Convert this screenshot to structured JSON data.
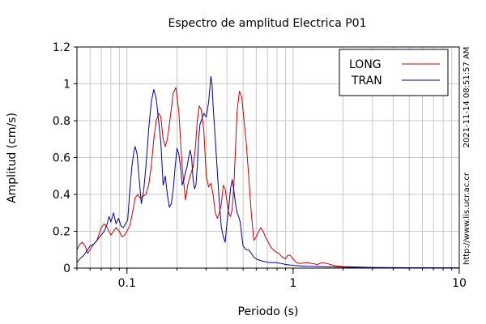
{
  "chart_data": {
    "type": "line",
    "title": "Espectro de amplitud Electrica P01",
    "xlabel": "Periodo (s)",
    "ylabel": "Amplitud (cm/s)",
    "x_scale": "log",
    "xlim": [
      0.05,
      10
    ],
    "ylim": [
      0,
      1.2
    ],
    "x_ticks": [
      0.1,
      1,
      10
    ],
    "x_tick_labels": [
      "0.1",
      "1",
      "10"
    ],
    "y_ticks": [
      0,
      0.2,
      0.4,
      0.6,
      0.8,
      1,
      1.2
    ],
    "y_tick_labels": [
      "0",
      "0.2",
      "0.4",
      "0.6",
      "0.8",
      "1",
      "1.2"
    ],
    "grid": true,
    "legend_position": "top-right",
    "side_annotations": [
      "2021-11-14 08:51:57 AM",
      "http://www.lis.ucr.ac.cr"
    ],
    "series": [
      {
        "name": "LONG",
        "color": "#cc0000",
        "points": [
          [
            0.05,
            0.1
          ],
          [
            0.052,
            0.13
          ],
          [
            0.054,
            0.14
          ],
          [
            0.056,
            0.12
          ],
          [
            0.058,
            0.08
          ],
          [
            0.06,
            0.1
          ],
          [
            0.063,
            0.13
          ],
          [
            0.066,
            0.15
          ],
          [
            0.07,
            0.22
          ],
          [
            0.073,
            0.24
          ],
          [
            0.076,
            0.22
          ],
          [
            0.08,
            0.18
          ],
          [
            0.083,
            0.2
          ],
          [
            0.086,
            0.22
          ],
          [
            0.09,
            0.2
          ],
          [
            0.093,
            0.17
          ],
          [
            0.097,
            0.18
          ],
          [
            0.1,
            0.2
          ],
          [
            0.104,
            0.23
          ],
          [
            0.108,
            0.3
          ],
          [
            0.112,
            0.38
          ],
          [
            0.116,
            0.4
          ],
          [
            0.12,
            0.38
          ],
          [
            0.125,
            0.39
          ],
          [
            0.13,
            0.4
          ],
          [
            0.135,
            0.45
          ],
          [
            0.14,
            0.55
          ],
          [
            0.145,
            0.7
          ],
          [
            0.15,
            0.8
          ],
          [
            0.155,
            0.84
          ],
          [
            0.16,
            0.82
          ],
          [
            0.165,
            0.7
          ],
          [
            0.17,
            0.66
          ],
          [
            0.175,
            0.7
          ],
          [
            0.18,
            0.78
          ],
          [
            0.19,
            0.95
          ],
          [
            0.197,
            0.98
          ],
          [
            0.205,
            0.85
          ],
          [
            0.215,
            0.55
          ],
          [
            0.225,
            0.37
          ],
          [
            0.232,
            0.45
          ],
          [
            0.24,
            0.5
          ],
          [
            0.25,
            0.55
          ],
          [
            0.258,
            0.65
          ],
          [
            0.265,
            0.8
          ],
          [
            0.272,
            0.88
          ],
          [
            0.28,
            0.86
          ],
          [
            0.29,
            0.75
          ],
          [
            0.3,
            0.5
          ],
          [
            0.31,
            0.44
          ],
          [
            0.32,
            0.46
          ],
          [
            0.33,
            0.4
          ],
          [
            0.34,
            0.3
          ],
          [
            0.35,
            0.27
          ],
          [
            0.36,
            0.3
          ],
          [
            0.37,
            0.35
          ],
          [
            0.38,
            0.45
          ],
          [
            0.39,
            0.43
          ],
          [
            0.4,
            0.36
          ],
          [
            0.41,
            0.3
          ],
          [
            0.42,
            0.28
          ],
          [
            0.43,
            0.32
          ],
          [
            0.44,
            0.45
          ],
          [
            0.45,
            0.65
          ],
          [
            0.46,
            0.85
          ],
          [
            0.475,
            0.96
          ],
          [
            0.49,
            0.93
          ],
          [
            0.5,
            0.85
          ],
          [
            0.52,
            0.7
          ],
          [
            0.54,
            0.5
          ],
          [
            0.56,
            0.3
          ],
          [
            0.58,
            0.15
          ],
          [
            0.6,
            0.17
          ],
          [
            0.62,
            0.2
          ],
          [
            0.64,
            0.22
          ],
          [
            0.66,
            0.2
          ],
          [
            0.68,
            0.17
          ],
          [
            0.7,
            0.15
          ],
          [
            0.74,
            0.11
          ],
          [
            0.78,
            0.09
          ],
          [
            0.82,
            0.08
          ],
          [
            0.86,
            0.06
          ],
          [
            0.9,
            0.05
          ],
          [
            0.93,
            0.07
          ],
          [
            0.96,
            0.07
          ],
          [
            1.0,
            0.05
          ],
          [
            1.05,
            0.03
          ],
          [
            1.1,
            0.025
          ],
          [
            1.2,
            0.03
          ],
          [
            1.3,
            0.025
          ],
          [
            1.4,
            0.02
          ],
          [
            1.5,
            0.03
          ],
          [
            1.6,
            0.025
          ],
          [
            1.7,
            0.018
          ],
          [
            1.8,
            0.012
          ],
          [
            2.0,
            0.008
          ],
          [
            2.5,
            0.006
          ],
          [
            3.0,
            0.004
          ],
          [
            4.0,
            0.003
          ],
          [
            5.0,
            0.002
          ],
          [
            7.0,
            0.001
          ],
          [
            10.0,
            0.001
          ]
        ]
      },
      {
        "name": "TRAN",
        "color": "#000099",
        "points": [
          [
            0.05,
            0.03
          ],
          [
            0.052,
            0.05
          ],
          [
            0.055,
            0.07
          ],
          [
            0.058,
            0.1
          ],
          [
            0.06,
            0.12
          ],
          [
            0.063,
            0.13
          ],
          [
            0.066,
            0.15
          ],
          [
            0.07,
            0.18
          ],
          [
            0.073,
            0.2
          ],
          [
            0.076,
            0.24
          ],
          [
            0.078,
            0.28
          ],
          [
            0.08,
            0.25
          ],
          [
            0.083,
            0.3
          ],
          [
            0.086,
            0.24
          ],
          [
            0.089,
            0.27
          ],
          [
            0.092,
            0.23
          ],
          [
            0.095,
            0.22
          ],
          [
            0.098,
            0.24
          ],
          [
            0.101,
            0.26
          ],
          [
            0.104,
            0.42
          ],
          [
            0.107,
            0.55
          ],
          [
            0.11,
            0.63
          ],
          [
            0.112,
            0.66
          ],
          [
            0.115,
            0.62
          ],
          [
            0.118,
            0.5
          ],
          [
            0.122,
            0.35
          ],
          [
            0.126,
            0.42
          ],
          [
            0.13,
            0.55
          ],
          [
            0.135,
            0.75
          ],
          [
            0.14,
            0.9
          ],
          [
            0.145,
            0.97
          ],
          [
            0.15,
            0.92
          ],
          [
            0.155,
            0.8
          ],
          [
            0.16,
            0.68
          ],
          [
            0.165,
            0.45
          ],
          [
            0.17,
            0.5
          ],
          [
            0.175,
            0.4
          ],
          [
            0.18,
            0.33
          ],
          [
            0.185,
            0.35
          ],
          [
            0.19,
            0.43
          ],
          [
            0.195,
            0.55
          ],
          [
            0.2,
            0.65
          ],
          [
            0.205,
            0.62
          ],
          [
            0.21,
            0.55
          ],
          [
            0.215,
            0.45
          ],
          [
            0.22,
            0.48
          ],
          [
            0.225,
            0.52
          ],
          [
            0.23,
            0.55
          ],
          [
            0.235,
            0.6
          ],
          [
            0.24,
            0.64
          ],
          [
            0.245,
            0.6
          ],
          [
            0.25,
            0.48
          ],
          [
            0.255,
            0.43
          ],
          [
            0.26,
            0.45
          ],
          [
            0.265,
            0.55
          ],
          [
            0.27,
            0.7
          ],
          [
            0.275,
            0.78
          ],
          [
            0.28,
            0.8
          ],
          [
            0.29,
            0.84
          ],
          [
            0.3,
            0.82
          ],
          [
            0.31,
            0.9
          ],
          [
            0.32,
            1.04
          ],
          [
            0.325,
            1.0
          ],
          [
            0.33,
            0.88
          ],
          [
            0.34,
            0.7
          ],
          [
            0.35,
            0.52
          ],
          [
            0.36,
            0.35
          ],
          [
            0.37,
            0.22
          ],
          [
            0.38,
            0.17
          ],
          [
            0.39,
            0.14
          ],
          [
            0.4,
            0.25
          ],
          [
            0.41,
            0.33
          ],
          [
            0.42,
            0.43
          ],
          [
            0.43,
            0.48
          ],
          [
            0.44,
            0.42
          ],
          [
            0.45,
            0.35
          ],
          [
            0.46,
            0.3
          ],
          [
            0.47,
            0.28
          ],
          [
            0.48,
            0.25
          ],
          [
            0.49,
            0.18
          ],
          [
            0.5,
            0.12
          ],
          [
            0.52,
            0.1
          ],
          [
            0.54,
            0.1
          ],
          [
            0.56,
            0.08
          ],
          [
            0.58,
            0.06
          ],
          [
            0.6,
            0.05
          ],
          [
            0.64,
            0.04
          ],
          [
            0.68,
            0.035
          ],
          [
            0.72,
            0.03
          ],
          [
            0.78,
            0.03
          ],
          [
            0.85,
            0.025
          ],
          [
            0.9,
            0.02
          ],
          [
            1.0,
            0.015
          ],
          [
            1.2,
            0.01
          ],
          [
            1.5,
            0.008
          ],
          [
            2.0,
            0.005
          ],
          [
            3.0,
            0.003
          ],
          [
            5.0,
            0.002
          ],
          [
            10.0,
            0.001
          ]
        ]
      }
    ]
  }
}
